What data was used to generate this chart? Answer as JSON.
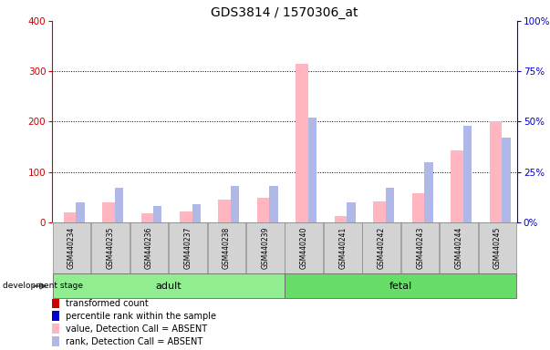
{
  "title": "GDS3814 / 1570306_at",
  "samples": [
    "GSM440234",
    "GSM440235",
    "GSM440236",
    "GSM440237",
    "GSM440238",
    "GSM440239",
    "GSM440240",
    "GSM440241",
    "GSM440242",
    "GSM440243",
    "GSM440244",
    "GSM440245"
  ],
  "groups": [
    "adult",
    "adult",
    "adult",
    "adult",
    "adult",
    "adult",
    "fetal",
    "fetal",
    "fetal",
    "fetal",
    "fetal",
    "fetal"
  ],
  "transformed_count_absent": [
    20,
    40,
    18,
    22,
    45,
    48,
    315,
    12,
    42,
    58,
    142,
    200
  ],
  "percentile_rank_absent": [
    10,
    17,
    8,
    9,
    18,
    18,
    52,
    10,
    17,
    30,
    48,
    42
  ],
  "left_ylim": [
    0,
    400
  ],
  "right_ylim": [
    0,
    100
  ],
  "left_yticks": [
    0,
    100,
    200,
    300,
    400
  ],
  "right_yticks": [
    0,
    25,
    50,
    75,
    100
  ],
  "right_yticklabels": [
    "0%",
    "25%",
    "50%",
    "75%",
    "100%"
  ],
  "color_absent_count": "#ffb6c1",
  "color_absent_rank": "#b0b8e8",
  "color_present_count": "#cc0000",
  "color_present_rank": "#0000cc",
  "background_color": "#ffffff",
  "left_axis_color": "#cc0000",
  "right_axis_color": "#0000cc",
  "legend_items": [
    {
      "label": "transformed count",
      "color": "#cc0000"
    },
    {
      "label": "percentile rank within the sample",
      "color": "#0000cc"
    },
    {
      "label": "value, Detection Call = ABSENT",
      "color": "#ffb6c1"
    },
    {
      "label": "rank, Detection Call = ABSENT",
      "color": "#b0b8e8"
    }
  ],
  "development_stage_label": "development stage",
  "sample_box_color": "#d3d3d3",
  "adult_color": "#90ee90",
  "fetal_color": "#66dd66",
  "groups_def": [
    {
      "label": "adult",
      "start": 0,
      "end": 5
    },
    {
      "label": "fetal",
      "start": 6,
      "end": 11
    }
  ]
}
